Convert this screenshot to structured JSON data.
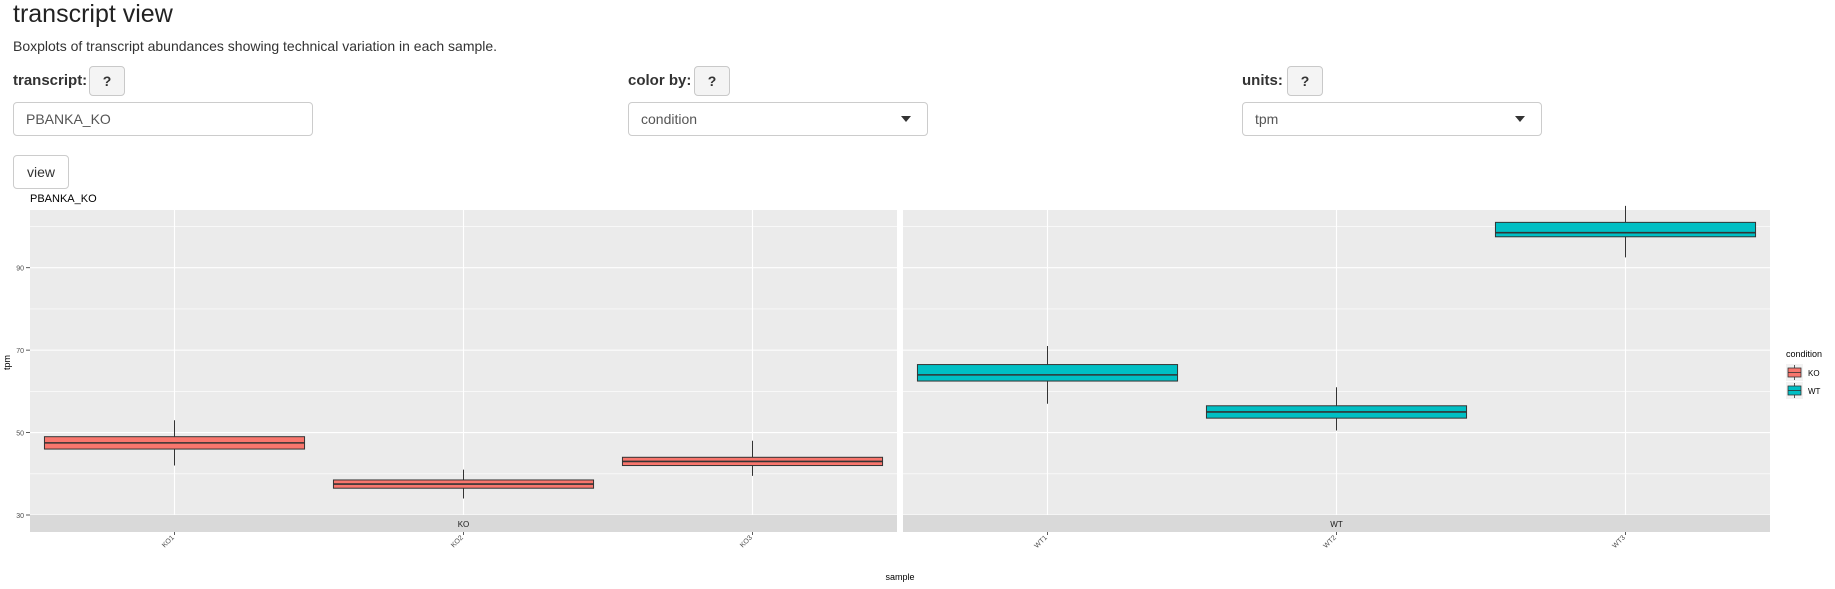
{
  "header": {
    "title": "transcript view",
    "subtitle": "Boxplots of transcript abundances showing technical variation in each sample."
  },
  "controls": {
    "transcript_label": "transcript:",
    "transcript_value": "PBANKA_KO",
    "color_label": "color by:",
    "color_value": "condition",
    "units_label": "units:",
    "units_value": "tpm",
    "help_label": "?",
    "view_label": "view"
  },
  "chart_data": {
    "type": "boxplot",
    "title": "PBANKA_KO",
    "xlabel": "sample",
    "ylabel": "tpm",
    "yticks": [
      30,
      50,
      70,
      90
    ],
    "ylim": [
      30,
      104
    ],
    "grid": true,
    "legend": {
      "title": "condition",
      "position": "right",
      "entries": [
        "KO",
        "WT"
      ]
    },
    "colors": {
      "KO": "#F8766D",
      "WT": "#00BFC4"
    },
    "facets": [
      {
        "label": "KO",
        "condition": "KO",
        "samples": [
          {
            "name": "KO1",
            "min": 42,
            "q1": 46,
            "median": 47.5,
            "q3": 49,
            "max": 53
          },
          {
            "name": "KO2",
            "min": 34,
            "q1": 36.5,
            "median": 37.5,
            "q3": 38.5,
            "max": 41
          },
          {
            "name": "KO3",
            "min": 39.5,
            "q1": 42,
            "median": 43,
            "q3": 44,
            "max": 48
          }
        ]
      },
      {
        "label": "WT",
        "condition": "WT",
        "samples": [
          {
            "name": "WT1",
            "min": 57,
            "q1": 62.5,
            "median": 64,
            "q3": 66.5,
            "max": 71
          },
          {
            "name": "WT2",
            "min": 50.5,
            "q1": 53.5,
            "median": 55,
            "q3": 56.5,
            "max": 61
          },
          {
            "name": "WT3",
            "min": 92.5,
            "q1": 97.5,
            "median": 98.5,
            "q3": 101,
            "max": 105
          }
        ]
      }
    ]
  }
}
